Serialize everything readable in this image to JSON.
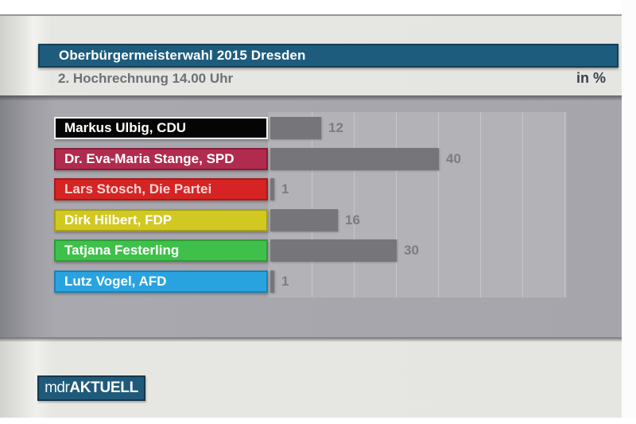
{
  "header": {
    "title": "Oberbürgermeisterwahl 2015 Dresden",
    "subtitle": "2. Hochrechnung 14.00 Uhr",
    "unit_label": "in %"
  },
  "chart_data": {
    "type": "bar",
    "orientation": "horizontal",
    "title": "Oberbürgermeisterwahl 2015 Dresden",
    "subtitle": "2. Hochrechnung 14.00 Uhr",
    "unit": "%",
    "categories": [
      "Markus Ulbig, CDU",
      "Dr. Eva-Maria Stange, SPD",
      "Lars Stosch, Die Partei",
      "Dirk Hilbert, FDP",
      "Tatjana Festerling",
      "Lutz Vogel, AFD"
    ],
    "values": [
      12,
      40,
      1,
      16,
      30,
      1
    ],
    "xlim": [
      0,
      70
    ],
    "gridline_interval": 10,
    "grid": "faint vertical lines on light gray panel",
    "bar_color": "#75757a",
    "value_label_color": "#7c7c81",
    "label_colors": [
      {
        "bg": "#050506",
        "border": "#f2f2f2",
        "text": "#ffffff"
      },
      {
        "bg": "#b12b4e",
        "border": "#8a1c3a",
        "text": "#ffffff"
      },
      {
        "bg": "#d52423",
        "border": "#a51b1a",
        "text": "#f8d8d8"
      },
      {
        "bg": "#d2c822",
        "border": "#a8a018",
        "text": "#ffffff"
      },
      {
        "bg": "#3fc04a",
        "border": "#2f9c3a",
        "text": "#ffffff"
      },
      {
        "bg": "#29a3e0",
        "border": "#1d82b6",
        "text": "#ffffff"
      }
    ]
  },
  "branding": {
    "logo_prefix": "mdr",
    "logo_suffix": "AKTUELL",
    "logo_bg": "#1f5a7b"
  },
  "colors": {
    "title_bar_bg": "#1e5c7d",
    "title_bar_border": "#153f57",
    "header_band_bg": "#e5e5e1",
    "frame_bg": "#a5a5ab",
    "chart_panel_bg": "#b2b2b7",
    "subtitle_text": "#6d7076",
    "unit_text": "#39404c"
  }
}
